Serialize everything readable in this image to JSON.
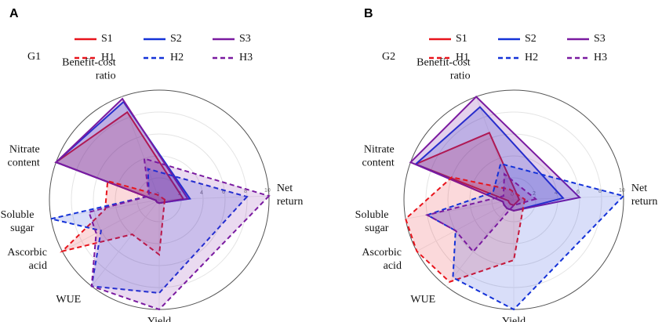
{
  "chart_data": [
    {
      "type": "radar",
      "panel_label": "A",
      "group_label": "G1",
      "categories": [
        [
          "Net",
          "return"
        ],
        [
          "Yield"
        ],
        [
          "WUE"
        ],
        [
          "Ascorbic",
          "acid"
        ],
        [
          "Soluble",
          "sugar"
        ],
        [
          "Nitrate",
          "content"
        ],
        [
          "Benefit-cost",
          "ratio"
        ]
      ],
      "ylim": [
        0,
        10
      ],
      "yticks": [
        0,
        2,
        4,
        6,
        8,
        10
      ],
      "grid": true,
      "series": [
        {
          "name": "S1",
          "color": "#e8141c",
          "dashed": false,
          "values": [
            2.2,
            0.3,
            0.3,
            0.3,
            0.3,
            10,
            8.5
          ]
        },
        {
          "name": "S2",
          "color": "#1432d8",
          "dashed": false,
          "values": [
            2.8,
            0.3,
            0.3,
            0.3,
            0.3,
            10,
            9.5
          ]
        },
        {
          "name": "S3",
          "color": "#7a1aa0",
          "dashed": false,
          "values": [
            2.6,
            0.3,
            0.3,
            0.3,
            0.3,
            10,
            9.8
          ]
        },
        {
          "name": "H1",
          "color": "#e8141c",
          "dashed": true,
          "values": [
            0.5,
            5,
            4,
            10,
            5,
            5,
            0.5
          ]
        },
        {
          "name": "H2",
          "color": "#1432d8",
          "dashed": true,
          "values": [
            8,
            8.5,
            10,
            6,
            10,
            1,
            3
          ]
        },
        {
          "name": "H3",
          "color": "#7a1aa0",
          "dashed": true,
          "values": [
            10,
            10,
            10,
            6.5,
            6.5,
            1,
            4
          ]
        }
      ]
    },
    {
      "type": "radar",
      "panel_label": "B",
      "group_label": "G2",
      "categories": [
        [
          "Net",
          "return"
        ],
        [
          "Yield"
        ],
        [
          "WUE"
        ],
        [
          "Ascorbic",
          "acid"
        ],
        [
          "Soluble",
          "sugar"
        ],
        [
          "Nitrate",
          "content"
        ],
        [
          "Benefit-cost",
          "ratio"
        ]
      ],
      "ylim": [
        0,
        10
      ],
      "yticks": [
        0,
        2,
        4,
        6,
        8,
        10
      ],
      "grid": true,
      "series": [
        {
          "name": "S1",
          "color": "#e8141c",
          "dashed": false,
          "values": [
            0.5,
            0.5,
            0.5,
            0.5,
            0.5,
            9.5,
            6.5
          ]
        },
        {
          "name": "S2",
          "color": "#1432d8",
          "dashed": false,
          "values": [
            4.5,
            1,
            1,
            1,
            1,
            9.5,
            9
          ]
        },
        {
          "name": "S3",
          "color": "#7a1aa0",
          "dashed": false,
          "values": [
            6,
            1,
            1,
            1,
            1,
            10,
            10
          ]
        },
        {
          "name": "H1",
          "color": "#e8141c",
          "dashed": true,
          "values": [
            1,
            5.5,
            9.5,
            10,
            10,
            6,
            1
          ]
        },
        {
          "name": "H2",
          "color": "#1432d8",
          "dashed": true,
          "values": [
            10,
            10,
            9,
            6,
            8,
            2,
            3.5
          ]
        },
        {
          "name": "H3",
          "color": "#7a1aa0",
          "dashed": true,
          "values": [
            2,
            0.5,
            6,
            6,
            8,
            1,
            2.5
          ]
        }
      ]
    }
  ]
}
